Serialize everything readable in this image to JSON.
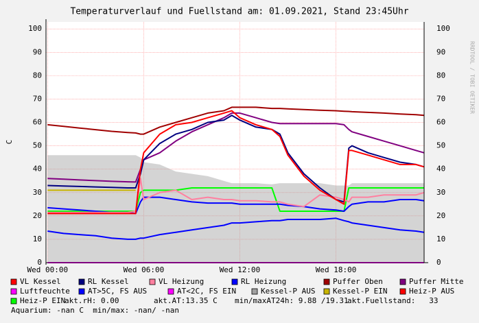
{
  "chart_data": {
    "type": "line",
    "title": "Temperaturverlauf und Fuellstand am: 01.09.2021, Stand 23:45Uhr",
    "y_label": "C",
    "watermark": "RRDTOOL / TOBI OETIKER",
    "xlim": [
      -0.1,
      23.5
    ],
    "xticks": [
      {
        "value": 0,
        "label": "Wed 00:00"
      },
      {
        "value": 6,
        "label": "Wed 06:00"
      },
      {
        "value": 12,
        "label": "Wed 12:00"
      },
      {
        "value": 18,
        "label": "Wed 18:00"
      }
    ],
    "ylim": [
      0,
      103
    ],
    "yticks": [
      0,
      10,
      20,
      30,
      40,
      50,
      60,
      70,
      80,
      90,
      100
    ],
    "grid": true,
    "x": [
      0,
      1,
      2,
      3,
      4,
      5,
      5.5,
      5.8,
      6,
      7,
      8,
      9,
      10,
      11,
      11.5,
      12,
      13,
      14,
      14.5,
      15,
      16,
      17,
      18,
      18.5,
      18.8,
      19,
      20,
      21,
      22,
      23,
      23.5
    ],
    "series": [
      {
        "name": "Kessel-P AUS",
        "color": "#a0a0a0",
        "kind": "area",
        "values": [
          46,
          46,
          46,
          46,
          46,
          46,
          46,
          45,
          43,
          42,
          39,
          38,
          37,
          35,
          34,
          34,
          34,
          33.5,
          34,
          34,
          34,
          34,
          33,
          33,
          33,
          34,
          34,
          34,
          34,
          34,
          34
        ]
      },
      {
        "name": "Luftfeuchte",
        "color": "#ff00ff",
        "values": [
          0,
          0,
          0,
          0,
          0,
          0,
          0,
          0,
          0,
          0,
          0,
          0,
          0,
          0,
          0,
          0,
          0,
          0,
          0,
          0,
          0,
          0,
          0,
          0,
          0,
          0,
          0,
          0,
          0,
          0,
          0
        ]
      },
      {
        "name": "Kessel-P EIN",
        "color": "#c8b400",
        "values": [
          31,
          31,
          31,
          31,
          31,
          31,
          31,
          null,
          null,
          null,
          null,
          null,
          null,
          null,
          null,
          null,
          null,
          null,
          null,
          null,
          null,
          null,
          null,
          null,
          null,
          null,
          null,
          null,
          null,
          null,
          null
        ]
      },
      {
        "name": "Heiz-P EIN",
        "color": "#00ff00",
        "values": [
          22,
          22,
          22,
          22,
          22,
          22,
          22,
          30,
          31,
          31,
          31,
          32,
          32,
          32,
          32,
          32,
          32,
          32,
          22,
          22,
          22,
          22,
          22,
          22,
          32,
          32,
          32,
          32,
          32,
          32,
          32
        ]
      },
      {
        "name": "AT>5C, FS AUS",
        "color": "#0000ff",
        "values": [
          13.5,
          12.5,
          12,
          11.5,
          10.5,
          10,
          10,
          10.5,
          10.5,
          12,
          13,
          14,
          15,
          16,
          17,
          17,
          17.5,
          18,
          18,
          18.5,
          18.5,
          18.5,
          19,
          18,
          17.5,
          17,
          16,
          15,
          14,
          13.5,
          13
        ]
      },
      {
        "name": "RL Heizung",
        "color": "#0000ff",
        "values": [
          23.5,
          23,
          22.5,
          22,
          21.5,
          21.5,
          21,
          26,
          28,
          28,
          27,
          26,
          25.5,
          25.5,
          25.5,
          25,
          25,
          25,
          25,
          24.5,
          24,
          23,
          22.5,
          22,
          24,
          25,
          26,
          26,
          27,
          27,
          26.5
        ]
      },
      {
        "name": "VL Heizung",
        "color": "#ff80a0",
        "values": [
          21.5,
          21.5,
          21.5,
          21.5,
          21.5,
          21.5,
          22,
          36,
          27,
          30,
          31,
          27,
          28,
          27,
          27,
          26.5,
          26.5,
          26,
          26,
          25,
          24,
          29,
          28,
          27,
          26,
          28,
          28,
          29,
          29,
          29,
          30
        ]
      },
      {
        "name": "Puffer Mitte",
        "color": "#800080",
        "values": [
          36,
          35.7,
          35.4,
          35.1,
          34.8,
          34.6,
          34.5,
          40,
          44,
          47,
          52,
          56,
          59,
          62,
          64,
          64,
          62,
          60,
          59.5,
          59.5,
          59.5,
          59.5,
          59.5,
          59,
          57,
          56,
          54,
          52,
          50,
          48,
          47
        ]
      },
      {
        "name": "Puffer Oben",
        "color": "#a00000",
        "values": [
          59,
          58.3,
          57.6,
          56.9,
          56.2,
          55.7,
          55.5,
          55,
          55,
          58,
          60,
          62,
          64,
          65,
          66.5,
          66.5,
          66.5,
          66,
          66,
          65.8,
          65.5,
          65.2,
          65,
          64.8,
          64.7,
          64.6,
          64.3,
          64,
          63.6,
          63.3,
          63
        ]
      },
      {
        "name": "RL Kessel",
        "color": "#000080",
        "values": [
          33,
          32.8,
          32.6,
          32.4,
          32.2,
          32,
          32,
          38,
          44,
          51,
          55,
          57,
          60,
          61,
          63,
          61,
          58,
          57,
          55,
          47,
          38,
          32,
          27,
          26,
          49,
          50,
          47,
          45,
          43,
          42,
          41
        ]
      },
      {
        "name": "VL Kessel",
        "color": "#ff0000",
        "values": [
          21,
          21,
          21,
          21,
          21,
          21,
          21,
          40,
          47,
          55,
          59,
          60,
          62,
          64,
          65,
          62,
          59,
          57,
          54,
          46,
          37,
          31,
          27,
          25,
          48,
          48,
          46,
          44,
          42,
          42,
          41
        ]
      },
      {
        "name": "AT<2C, FS EIN",
        "color": "#ff00ff"
      },
      {
        "name": "Heiz-P AUS",
        "color": "#ff0000"
      }
    ],
    "info": [
      "akt.rH: 0.00",
      "akt.AT:13.35 C",
      "min/maxAT24h: 9.88 /19.31",
      "akt.Fuellstand:   33",
      "Aquarium: -nan C  min/max: -nan/ -nan"
    ]
  }
}
